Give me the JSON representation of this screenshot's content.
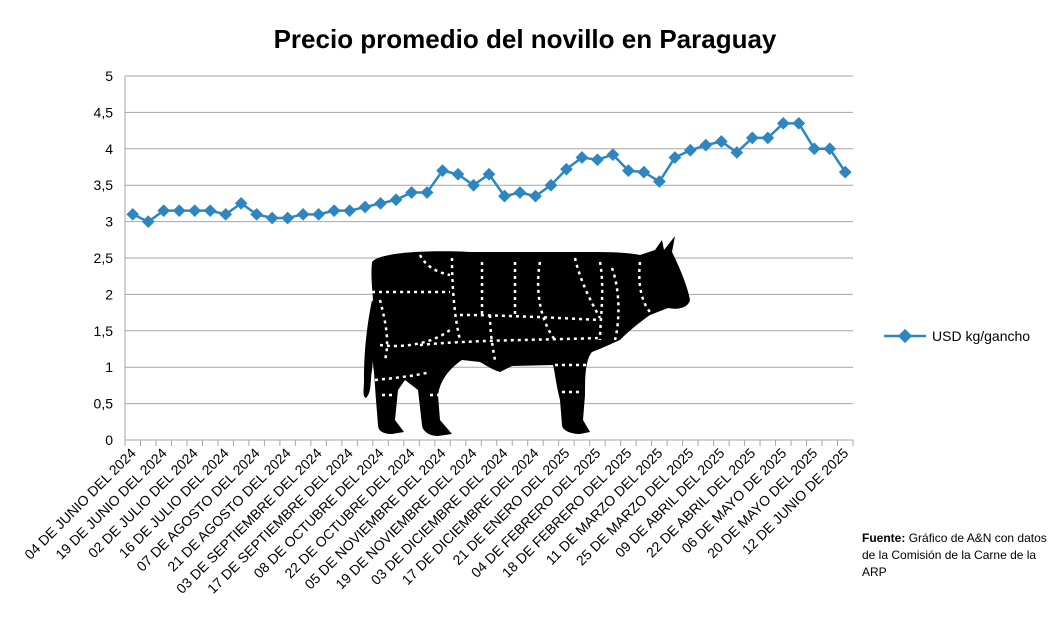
{
  "chart_data": {
    "type": "line",
    "title": "Precio promedio del novillo en Paraguay",
    "ylim": [
      0,
      5
    ],
    "yticks": [
      "0",
      "0,5",
      "1",
      "1,5",
      "2",
      "2,5",
      "3",
      "3,5",
      "4",
      "4,5",
      "5"
    ],
    "grid": true,
    "legend_position": "right",
    "x_labels": [
      "04 DE JUNIO  DEL 2024",
      "19 DE JUNIO  DEL 2024",
      "02 DE JULIO  DEL 2024",
      "16 DE JULIO  DEL 2024",
      "07 DE AGOSTO DEL 2024",
      "21 DE AGOSTO  DEL 2024",
      "03 DE SEPTIEMBRE DEL 2024",
      "17 DE SEPTIEMBRE DEL 2024",
      "08 DE OCTUBRE DEL 2024",
      "22 DE OCTUBRE  DEL 2024",
      "05 DE NOVIEMBRE  DEL 2024",
      "19 DE NOVIEMBRE DEL 2024",
      "03 DE DICIEMBRE DEL 2024",
      "17 DE DICIEMBRE DEL 2024",
      "21 DE ENERO DEL 2025",
      "04 DE FEBRERO DEL 2025",
      "18 DE FEBRERO DEL 2025",
      "11 DE MARZO DEL 2025",
      "25 DE MARZO DEL 2025",
      "09 DE ABRIL  DEL 2025",
      "22 DE ABRIL DEL 2025",
      "06 DE MAYO DE 2025",
      "20 DE MAYO DEL 2025",
      "12 DE JUNIO DE 2025"
    ],
    "series": [
      {
        "name": "USD kg/gancho",
        "color": "#2E86C1",
        "values": [
          3.1,
          3.0,
          3.15,
          3.15,
          3.15,
          3.15,
          3.1,
          3.25,
          3.1,
          3.05,
          3.05,
          3.1,
          3.1,
          3.15,
          3.15,
          3.2,
          3.25,
          3.3,
          3.4,
          3.4,
          3.7,
          3.65,
          3.5,
          3.65,
          3.35,
          3.4,
          3.35,
          3.5,
          3.72,
          3.88,
          3.85,
          3.92,
          3.7,
          3.68,
          3.55,
          3.88,
          3.98,
          4.05,
          4.1,
          3.95,
          4.15,
          4.15,
          4.35,
          4.35,
          4.0,
          4.0,
          3.68
        ]
      }
    ]
  },
  "source": {
    "label": "Fuente:",
    "text": "Gráfico de A&N con datos de la Comisión de la Carne de la ARP"
  }
}
